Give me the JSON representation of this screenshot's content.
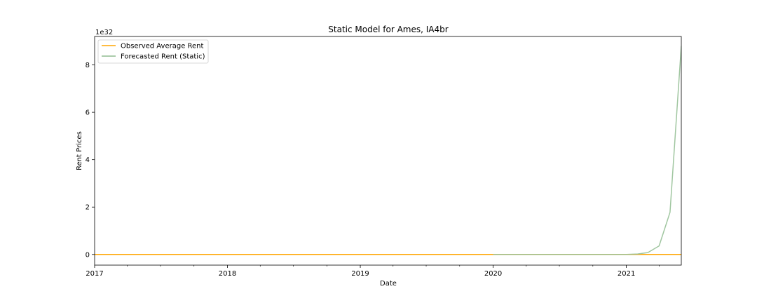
{
  "chart_data": {
    "type": "line",
    "title": "Static Model for Ames, IA4br",
    "xlabel": "Date",
    "ylabel": "Rent Prices",
    "y_scale_label": "1e32",
    "xlim": [
      "2017-01-01",
      "2021-06-01"
    ],
    "ylim": [
      -0.45,
      9.2
    ],
    "x_ticks": [
      {
        "label": "2017",
        "value": "2017-01-01"
      },
      {
        "label": "2018",
        "value": "2018-01-01"
      },
      {
        "label": "2019",
        "value": "2019-01-01"
      },
      {
        "label": "2020",
        "value": "2020-01-01"
      },
      {
        "label": "2021",
        "value": "2021-01-01"
      }
    ],
    "y_ticks": [
      {
        "label": "0",
        "value": 0
      },
      {
        "label": "2",
        "value": 2
      },
      {
        "label": "4",
        "value": 4
      },
      {
        "label": "6",
        "value": 6
      },
      {
        "label": "8",
        "value": 8
      }
    ],
    "legend": "top-left",
    "grid": false,
    "series": [
      {
        "name": "Observed Average Rent",
        "color": "#ffa500",
        "x": [
          "2017-01-01",
          "2021-06-01"
        ],
        "y": [
          0,
          0
        ]
      },
      {
        "name": "Forecasted Rent (Static)",
        "color": "#8fbc8f",
        "x": [
          "2020-01-01",
          "2020-02-01",
          "2020-03-01",
          "2020-04-01",
          "2020-05-01",
          "2020-06-01",
          "2020-07-01",
          "2020-08-01",
          "2020-09-01",
          "2020-10-01",
          "2020-11-01",
          "2020-12-01",
          "2021-01-01",
          "2021-02-01",
          "2021-03-01",
          "2021-04-01",
          "2021-05-01",
          "2021-06-01"
        ],
        "y": [
          0,
          0,
          0,
          0,
          0,
          0,
          0,
          0,
          0,
          0,
          0,
          0,
          0,
          0.02,
          0.08,
          0.36,
          1.78,
          8.8
        ]
      }
    ]
  }
}
